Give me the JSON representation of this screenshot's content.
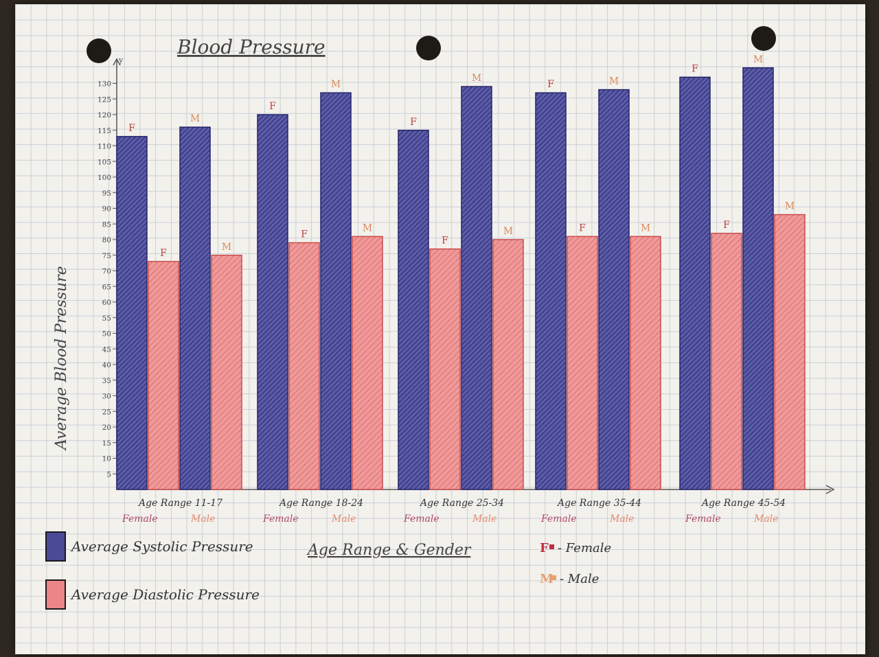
{
  "colors": {
    "systolic": "#3f3f8c",
    "diastolic": "#e88080",
    "female_marker": "#c03040",
    "male_marker": "#e8a070",
    "axis": "#555555"
  },
  "chart_data": {
    "type": "bar",
    "title": "Blood Pressure",
    "xlabel": "Age Range & Gender",
    "ylabel": "Average Blood Pressure",
    "ylim": [
      0,
      130
    ],
    "yticks": [
      5,
      10,
      15,
      20,
      25,
      30,
      35,
      40,
      45,
      50,
      55,
      60,
      65,
      70,
      75,
      80,
      85,
      90,
      95,
      100,
      105,
      110,
      115,
      120,
      125,
      130
    ],
    "y_axis_arrow_label": "y",
    "groups": [
      {
        "label": "Age Range 11-17",
        "female_label": "Female",
        "male_label": "Male"
      },
      {
        "label": "Age Range 18-24",
        "female_label": "Female",
        "male_label": "Male"
      },
      {
        "label": "Age Range 25-34",
        "female_label": "Female",
        "male_label": "Male"
      },
      {
        "label": "Age Range 35-44",
        "female_label": "Female",
        "male_label": "Male"
      },
      {
        "label": "Age Range 45-54",
        "female_label": "Female",
        "male_label": "Male"
      }
    ],
    "bars": [
      {
        "group": 0,
        "sex": "F",
        "measure": "systolic",
        "value": 113
      },
      {
        "group": 0,
        "sex": "F",
        "measure": "diastolic",
        "value": 73
      },
      {
        "group": 0,
        "sex": "M",
        "measure": "systolic",
        "value": 116
      },
      {
        "group": 0,
        "sex": "M",
        "measure": "diastolic",
        "value": 75
      },
      {
        "group": 1,
        "sex": "F",
        "measure": "systolic",
        "value": 120
      },
      {
        "group": 1,
        "sex": "F",
        "measure": "diastolic",
        "value": 79
      },
      {
        "group": 1,
        "sex": "M",
        "measure": "systolic",
        "value": 127
      },
      {
        "group": 1,
        "sex": "M",
        "measure": "diastolic",
        "value": 81
      },
      {
        "group": 2,
        "sex": "F",
        "measure": "systolic",
        "value": 115
      },
      {
        "group": 2,
        "sex": "F",
        "measure": "diastolic",
        "value": 77
      },
      {
        "group": 2,
        "sex": "M",
        "measure": "systolic",
        "value": 129
      },
      {
        "group": 2,
        "sex": "M",
        "measure": "diastolic",
        "value": 80
      },
      {
        "group": 3,
        "sex": "F",
        "measure": "systolic",
        "value": 127
      },
      {
        "group": 3,
        "sex": "F",
        "measure": "diastolic",
        "value": 81
      },
      {
        "group": 3,
        "sex": "M",
        "measure": "systolic",
        "value": 128
      },
      {
        "group": 3,
        "sex": "M",
        "measure": "diastolic",
        "value": 81
      },
      {
        "group": 4,
        "sex": "F",
        "measure": "systolic",
        "value": 132
      },
      {
        "group": 4,
        "sex": "F",
        "measure": "diastolic",
        "value": 82
      },
      {
        "group": 4,
        "sex": "M",
        "measure": "systolic",
        "value": 135
      },
      {
        "group": 4,
        "sex": "M",
        "measure": "diastolic",
        "value": 88
      }
    ],
    "legend": {
      "systolic_label": "Average Systolic Pressure",
      "diastolic_label": "Average Diastolic Pressure",
      "female_key": "F",
      "female_label": "- Female",
      "male_key": "M",
      "male_label": "- Male"
    }
  }
}
